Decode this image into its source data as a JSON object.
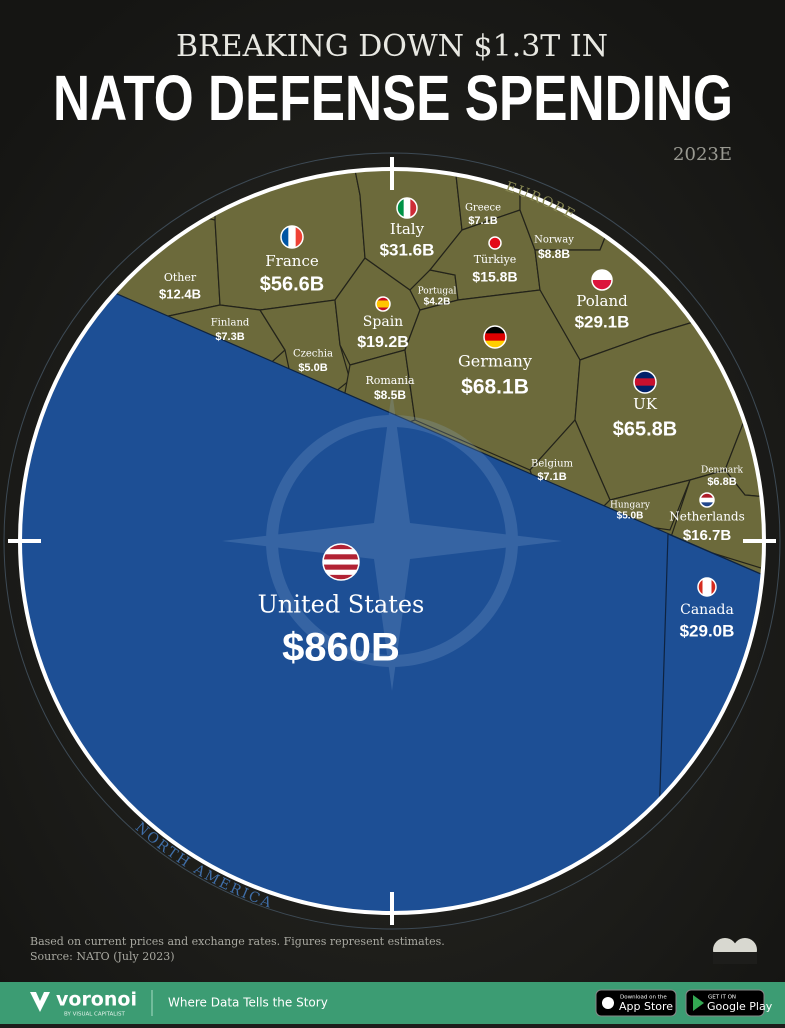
{
  "chart_data": {
    "type": "voronoi",
    "pretitle": "BREAKING DOWN $1.3T IN",
    "title": "NATO DEFENSE SPENDING",
    "subtitle": "2023E",
    "groups": [
      {
        "name": "EUROPE",
        "color": "#6c6a3b",
        "categories": [
          "Other",
          "France",
          "Finland",
          "Czechia",
          "Spain",
          "Romania",
          "Italy",
          "Portugal",
          "Greece",
          "Türkiye",
          "Norway",
          "Poland",
          "Germany",
          "UK",
          "Denmark",
          "Belgium",
          "Hungary",
          "Netherlands"
        ],
        "values": [
          12.4,
          56.6,
          7.3,
          5.0,
          19.2,
          8.5,
          31.6,
          4.2,
          7.1,
          15.8,
          8.8,
          29.1,
          68.1,
          65.8,
          6.8,
          7.1,
          5.0,
          16.7
        ],
        "value_labels": [
          "$12.4B",
          "$56.6B",
          "$7.3B",
          "$5.0B",
          "$19.2B",
          "$8.5B",
          "$31.6B",
          "$4.2B",
          "$7.1B",
          "$15.8B",
          "$8.8B",
          "$29.1B",
          "$68.1B",
          "$65.8B",
          "$6.8B",
          "$7.1B",
          "$5.0B",
          "$16.7B"
        ]
      },
      {
        "name": "NORTH AMERICA",
        "color": "#1d4f95",
        "categories": [
          "United States",
          "Canada"
        ],
        "values": [
          860,
          29.0
        ],
        "value_labels": [
          "$860B",
          "$29.0B"
        ]
      }
    ]
  },
  "footer": {
    "note": "Based on current prices and exchange rates. Figures represent estimates.",
    "source": "Source: NATO (July 2023)"
  },
  "brand": {
    "name": "voronoi",
    "byline": "BY VISUAL CAPITALIST",
    "tagline": "Where Data Tells the Story",
    "app_store": [
      "Download on the",
      "App Store"
    ],
    "google_play": [
      "GET IT ON",
      "Google Play"
    ]
  }
}
